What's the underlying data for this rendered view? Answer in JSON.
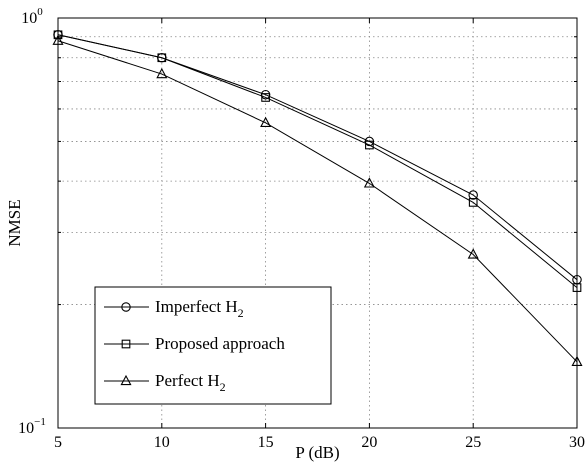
{
  "chart_data": {
    "type": "line",
    "title": "",
    "xlabel": "P (dB)",
    "ylabel": "NMSE",
    "x": [
      5,
      10,
      15,
      20,
      25,
      30
    ],
    "xlim": [
      5,
      30
    ],
    "ylim": [
      0.1,
      1
    ],
    "yscale": "log",
    "grid": true,
    "legend_position": "bottom-left",
    "xticks": [
      "5",
      "10",
      "15",
      "20",
      "25",
      "30"
    ],
    "yticks": [
      {
        "base": "10",
        "exp": "−1",
        "value": 0.1
      },
      {
        "base": "10",
        "exp": "0",
        "value": 1
      }
    ],
    "series": [
      {
        "name": "Imperfect H",
        "subscript": "2",
        "marker": "circle",
        "values": [
          0.91,
          0.8,
          0.65,
          0.5,
          0.37,
          0.23
        ]
      },
      {
        "name": "Proposed approach",
        "subscript": "",
        "marker": "square",
        "values": [
          0.91,
          0.8,
          0.64,
          0.49,
          0.355,
          0.22
        ]
      },
      {
        "name": "Perfect H",
        "subscript": "2",
        "marker": "triangle",
        "values": [
          0.88,
          0.73,
          0.555,
          0.395,
          0.265,
          0.145
        ]
      }
    ],
    "colors": {
      "line": "#000000",
      "grid": "#888888",
      "background": "#ffffff"
    }
  }
}
